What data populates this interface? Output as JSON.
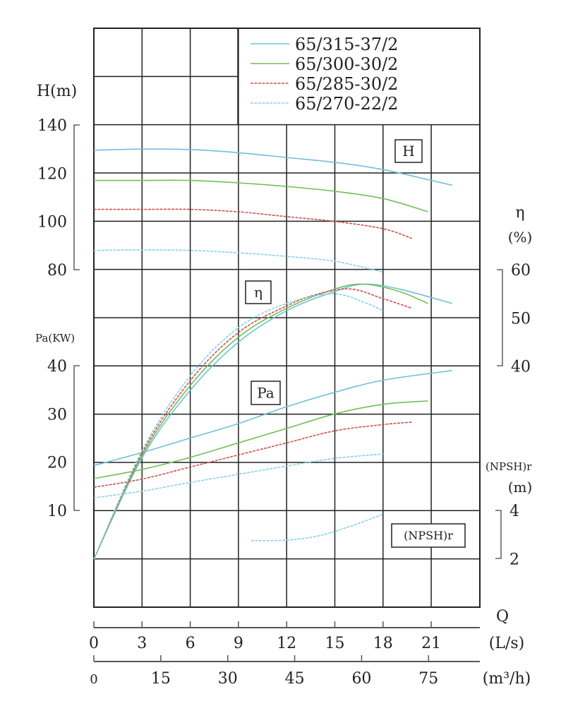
{
  "chart_data": {
    "type": "line",
    "grid": true,
    "legend_placement": "top-right",
    "x_axis": {
      "label": "Q",
      "unit_primary": "(L/s)",
      "ticks_primary": [
        0,
        3,
        6,
        9,
        12,
        15,
        18,
        21
      ],
      "unit_secondary": "(m³/h)",
      "ticks_secondary": [
        0,
        15,
        30,
        45,
        60,
        75
      ],
      "range_ls": [
        0,
        24
      ]
    },
    "axes": {
      "H": {
        "label": "H(m)",
        "ticks": [
          140,
          120,
          100,
          80
        ],
        "box_label": "H"
      },
      "eta": {
        "label": "η",
        "unit": "(%)",
        "ticks": [
          60,
          50,
          40
        ],
        "box_label": "η"
      },
      "Pa": {
        "label": "Pa(KW)",
        "ticks": [
          40,
          30,
          20,
          10
        ],
        "box_label": "Pa"
      },
      "NPSH": {
        "label": "(NPSH)r",
        "unit": "(m)",
        "ticks": [
          4,
          2
        ],
        "box_label": "(NPSH)r"
      }
    },
    "series": [
      {
        "name": "65/315-37/2",
        "color": "#6fc0dc",
        "dash": "solid",
        "H": [
          [
            0,
            129.5
          ],
          [
            3,
            130
          ],
          [
            6,
            129.8
          ],
          [
            9,
            128.5
          ],
          [
            12,
            126.5
          ],
          [
            15,
            124.5
          ],
          [
            18,
            121.5
          ],
          [
            22.3,
            115
          ]
        ],
        "eta": [
          [
            0,
            0
          ],
          [
            3,
            21
          ],
          [
            6,
            35
          ],
          [
            9,
            45
          ],
          [
            12,
            51.5
          ],
          [
            15,
            55.5
          ],
          [
            16.8,
            57
          ],
          [
            19,
            56
          ],
          [
            22.3,
            53
          ]
        ],
        "Pa": [
          [
            0,
            19.3
          ],
          [
            3,
            22
          ],
          [
            6,
            25
          ],
          [
            9,
            28
          ],
          [
            12,
            31.5
          ],
          [
            15,
            34.5
          ],
          [
            18,
            37
          ],
          [
            22.3,
            39
          ]
        ]
      },
      {
        "name": "65/300-30/2",
        "color": "#72bf55",
        "dash": "solid",
        "H": [
          [
            0,
            117
          ],
          [
            3,
            117
          ],
          [
            6,
            117
          ],
          [
            9,
            116
          ],
          [
            12,
            114.5
          ],
          [
            15,
            112.5
          ],
          [
            18,
            109.5
          ],
          [
            20.8,
            104
          ]
        ],
        "eta": [
          [
            0,
            0
          ],
          [
            3,
            21.5
          ],
          [
            6,
            36
          ],
          [
            9,
            46
          ],
          [
            12,
            52
          ],
          [
            15,
            56
          ],
          [
            16.8,
            57
          ],
          [
            19,
            55.5
          ],
          [
            20.8,
            53
          ]
        ],
        "Pa": [
          [
            0,
            16.6
          ],
          [
            3,
            18.5
          ],
          [
            6,
            21
          ],
          [
            9,
            24
          ],
          [
            12,
            27
          ],
          [
            15,
            30
          ],
          [
            18,
            32
          ],
          [
            20.8,
            32.7
          ]
        ]
      },
      {
        "name": "65/285-30/2",
        "color": "#d0504f",
        "dash": "dashed",
        "H": [
          [
            0,
            105
          ],
          [
            3,
            105
          ],
          [
            6,
            105
          ],
          [
            9,
            104
          ],
          [
            12,
            102
          ],
          [
            15,
            100
          ],
          [
            18,
            97
          ],
          [
            19.8,
            93
          ]
        ],
        "eta": [
          [
            0,
            0
          ],
          [
            3,
            22
          ],
          [
            6,
            37
          ],
          [
            9,
            47
          ],
          [
            12,
            52.5
          ],
          [
            14,
            55
          ],
          [
            16,
            56
          ],
          [
            18,
            54
          ],
          [
            19.8,
            52
          ]
        ],
        "Pa": [
          [
            0,
            14.8
          ],
          [
            3,
            16.5
          ],
          [
            6,
            19
          ],
          [
            9,
            21.5
          ],
          [
            12,
            24
          ],
          [
            15,
            26.5
          ],
          [
            18,
            27.8
          ],
          [
            19.8,
            28.3
          ]
        ]
      },
      {
        "name": "65/270-22/2",
        "color": "#86d3e6",
        "dash": "dashed",
        "H": [
          [
            0,
            88
          ],
          [
            3,
            88.2
          ],
          [
            6,
            88
          ],
          [
            9,
            87
          ],
          [
            12,
            85.5
          ],
          [
            15,
            83.5
          ],
          [
            18,
            79
          ]
        ],
        "eta": [
          [
            0,
            0
          ],
          [
            3,
            22.5
          ],
          [
            6,
            38
          ],
          [
            9,
            48
          ],
          [
            12,
            53
          ],
          [
            14.9,
            55
          ],
          [
            17,
            53
          ],
          [
            18,
            51.5
          ]
        ],
        "Pa": [
          [
            0,
            12.6
          ],
          [
            3,
            14
          ],
          [
            6,
            15.8
          ],
          [
            9,
            17.5
          ],
          [
            12,
            19.2
          ],
          [
            15,
            20.8
          ],
          [
            18,
            21.7
          ]
        ],
        "NPSH": [
          [
            9.8,
            2.75
          ],
          [
            12,
            2.77
          ],
          [
            14,
            2.95
          ],
          [
            16,
            3.35
          ],
          [
            18,
            3.85
          ]
        ]
      }
    ]
  }
}
